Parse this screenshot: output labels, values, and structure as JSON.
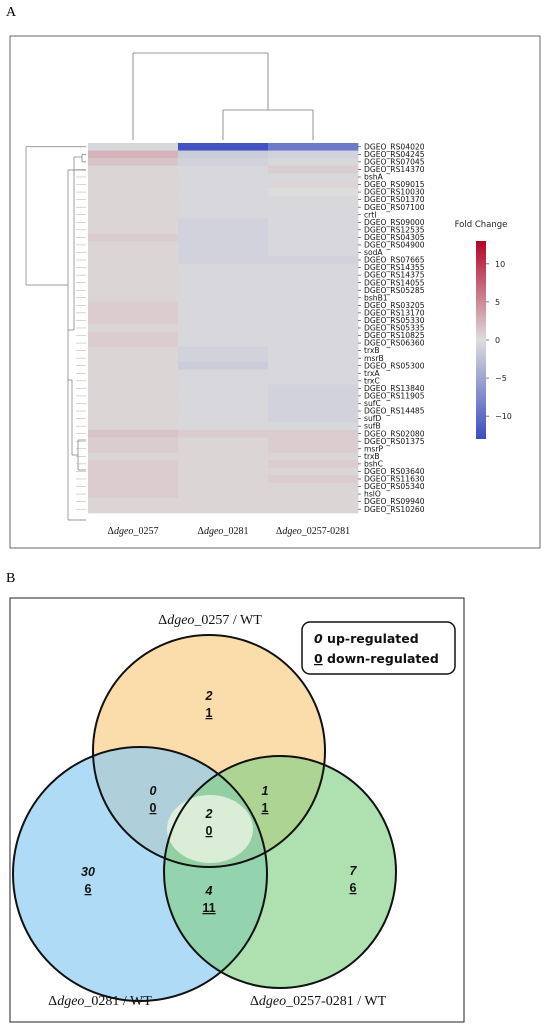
{
  "panel_a_label": "A",
  "panel_b_label": "B",
  "chart_data": [
    {
      "type": "heatmap",
      "columns": [
        "Δdgeo_0257",
        "Δdgeo_0281",
        "Δdgeo_0257-0281"
      ],
      "column_parts": [
        [
          "Δ",
          "dgeo",
          "_0257"
        ],
        [
          "Δ",
          "dgeo",
          "_0281"
        ],
        [
          "Δ",
          "dgeo",
          "_0257-0281"
        ]
      ],
      "rows": [
        "DGEO_RS04020",
        "DGEO_RS04245",
        "DGEO_RS07045",
        "DGEO_RS14370",
        "bshA",
        "DGEO_RS09015",
        "DGEO_RS10030",
        "DGEO_RS01370",
        "DGEO_RS07100",
        "crtI",
        "DGEO_RS09000",
        "DGEO_RS12535",
        "DGEO_RS04305",
        "DGEO_RS04900",
        "sodA",
        "DGEO_RS07665",
        "DGEO_RS14355",
        "DGEO_RS14375",
        "DGEO_RS14055",
        "DGEO_RS05285",
        "bshB1",
        "DGEO_RS03205",
        "DGEO_RS13170",
        "DGEO_RS05330",
        "DGEO_RS05335",
        "DGEO_RS10825",
        "DGEO_RS06360",
        "trxB",
        "msrB",
        "DGEO_RS05300",
        "trxA",
        "trxC",
        "DGEO_RS13840",
        "DGEO_RS11905",
        "sufC",
        "DGEO_RS14485",
        "sufD",
        "sufB",
        "DGEO_RS02080",
        "DGEO_RS01375",
        "msrP",
        "trxB",
        "bshC",
        "DGEO_RS03640",
        "DGEO_RS11630",
        "DGEO_RS05340",
        "hslO",
        "DGEO_RS09940",
        "DGEO_RS10260"
      ],
      "values": [
        [
          -0.5,
          -12.5,
          -9.0
        ],
        [
          2.5,
          -1.5,
          -1.0
        ],
        [
          1.5,
          -1.0,
          -0.5
        ],
        [
          0.5,
          -0.5,
          1.0
        ],
        [
          0.5,
          -0.5,
          -0.5
        ],
        [
          0.5,
          -0.5,
          0.5
        ],
        [
          0.5,
          -0.5,
          0.0
        ],
        [
          0.5,
          -0.5,
          -0.5
        ],
        [
          0.5,
          -0.5,
          -0.5
        ],
        [
          0.5,
          -0.5,
          -0.5
        ],
        [
          0.5,
          -1.0,
          -0.5
        ],
        [
          0.5,
          -1.0,
          -0.5
        ],
        [
          1.0,
          -1.0,
          -0.5
        ],
        [
          0.5,
          -1.0,
          -0.5
        ],
        [
          0.5,
          -1.0,
          -0.5
        ],
        [
          0.5,
          -1.0,
          -1.0
        ],
        [
          0.5,
          -0.5,
          -0.5
        ],
        [
          0.5,
          -0.5,
          -0.5
        ],
        [
          0.5,
          -0.5,
          -0.5
        ],
        [
          0.5,
          -0.5,
          -0.5
        ],
        [
          0.5,
          -0.5,
          -0.5
        ],
        [
          1.0,
          -0.5,
          -0.5
        ],
        [
          1.0,
          -0.5,
          -0.5
        ],
        [
          1.0,
          -0.5,
          -0.5
        ],
        [
          0.5,
          -0.5,
          -0.5
        ],
        [
          1.0,
          -0.5,
          -0.5
        ],
        [
          1.0,
          -0.5,
          -0.5
        ],
        [
          0.5,
          -1.0,
          -0.5
        ],
        [
          0.5,
          -1.0,
          -0.5
        ],
        [
          0.5,
          -1.5,
          -0.5
        ],
        [
          0.5,
          -0.5,
          -0.5
        ],
        [
          0.5,
          -0.5,
          -0.5
        ],
        [
          0.5,
          -0.5,
          -1.0
        ],
        [
          0.5,
          -0.5,
          -1.0
        ],
        [
          0.5,
          -0.5,
          -1.0
        ],
        [
          0.5,
          -0.5,
          -1.0
        ],
        [
          0.5,
          -0.5,
          -1.0
        ],
        [
          0.5,
          -0.5,
          -0.5
        ],
        [
          1.5,
          1.0,
          1.0
        ],
        [
          1.0,
          0.5,
          1.0
        ],
        [
          1.0,
          0.5,
          1.0
        ],
        [
          0.5,
          0.5,
          0.5
        ],
        [
          1.0,
          0.5,
          1.0
        ],
        [
          1.0,
          0.5,
          0.5
        ],
        [
          1.0,
          0.5,
          1.0
        ],
        [
          1.0,
          0.5,
          0.5
        ],
        [
          1.0,
          0.5,
          0.5
        ],
        [
          0.5,
          0.5,
          0.5
        ],
        [
          0.5,
          0.5,
          0.5
        ]
      ],
      "colorbar": {
        "title": "Fold Change",
        "range": [
          -13,
          13
        ],
        "ticks": [
          10,
          5,
          0,
          -5,
          -10
        ],
        "tick_labels": [
          "10",
          "5",
          "0",
          "−5",
          "−10"
        ],
        "colors": {
          "low": "#3b4cc0",
          "mid": "#dddddd",
          "high": "#b40426"
        }
      },
      "column_dendrogram": true,
      "row_dendrogram": true
    },
    {
      "type": "venn",
      "sets": [
        {
          "title_parts": [
            "Δ",
            "dgeo",
            "_0257 / WT"
          ],
          "color": "#f9c97e"
        },
        {
          "title_parts": [
            "Δ",
            "dgeo",
            "_0281 / WT"
          ],
          "color": "#85c8f2"
        },
        {
          "title_parts": [
            "Δ",
            "dgeo",
            "_0257-0281 / WT"
          ],
          "color": "#84cf86"
        }
      ],
      "regions": [
        {
          "region": "only_0257",
          "up": "2",
          "down": "1"
        },
        {
          "region": "0257_and_0281",
          "up": "0",
          "down": "0"
        },
        {
          "region": "0257_and_0257-0281",
          "up": "1",
          "down": "1"
        },
        {
          "region": "all_three",
          "up": "2",
          "down": "0"
        },
        {
          "region": "only_0281",
          "up": "30",
          "down": "6"
        },
        {
          "region": "0281_and_0257-0281",
          "up": "4",
          "down": "11"
        },
        {
          "region": "only_0257-0281",
          "up": "7",
          "down": "6"
        }
      ],
      "legend": {
        "up_symbol": "0",
        "up_text": " up-regulated",
        "down_symbol": "0",
        "down_text": " down-regulated"
      }
    }
  ]
}
